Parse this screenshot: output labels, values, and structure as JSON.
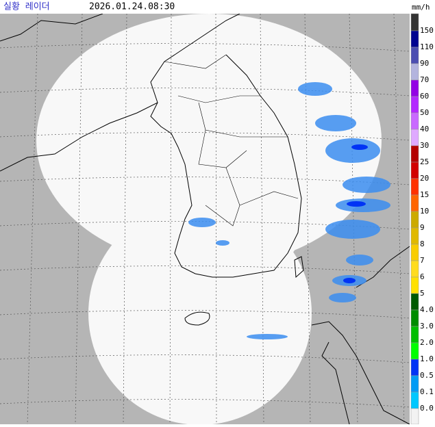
{
  "header": {
    "title": "실황 레이더",
    "time": "2026.01.24.08:30"
  },
  "legend": {
    "unit": "mm/h",
    "labels": [
      "150",
      "110",
      "90",
      "70",
      "60",
      "50",
      "40",
      "30",
      "25",
      "20",
      "15",
      "10",
      "9",
      "8",
      "7",
      "6",
      "5",
      "4.0",
      "3.0",
      "2.0",
      "1.0",
      "0.5",
      "0.1",
      "0.0"
    ],
    "colors": [
      "#333333",
      "#000390",
      "#4c4eb1",
      "#b3b4de",
      "#9300e4",
      "#b329ff",
      "#c969ff",
      "#dfa9ff",
      "#b40000",
      "#d20000",
      "#ff3200",
      "#ff6600",
      "#ccaa00",
      "#e0b900",
      "#f9cd00",
      "#ffdc1f",
      "#ffe100",
      "#005a00",
      "#008c00",
      "#00be00",
      "#00ff00",
      "#0033f5",
      "#009bf5",
      "#00c8ff",
      "#f2f2f2"
    ]
  }
}
